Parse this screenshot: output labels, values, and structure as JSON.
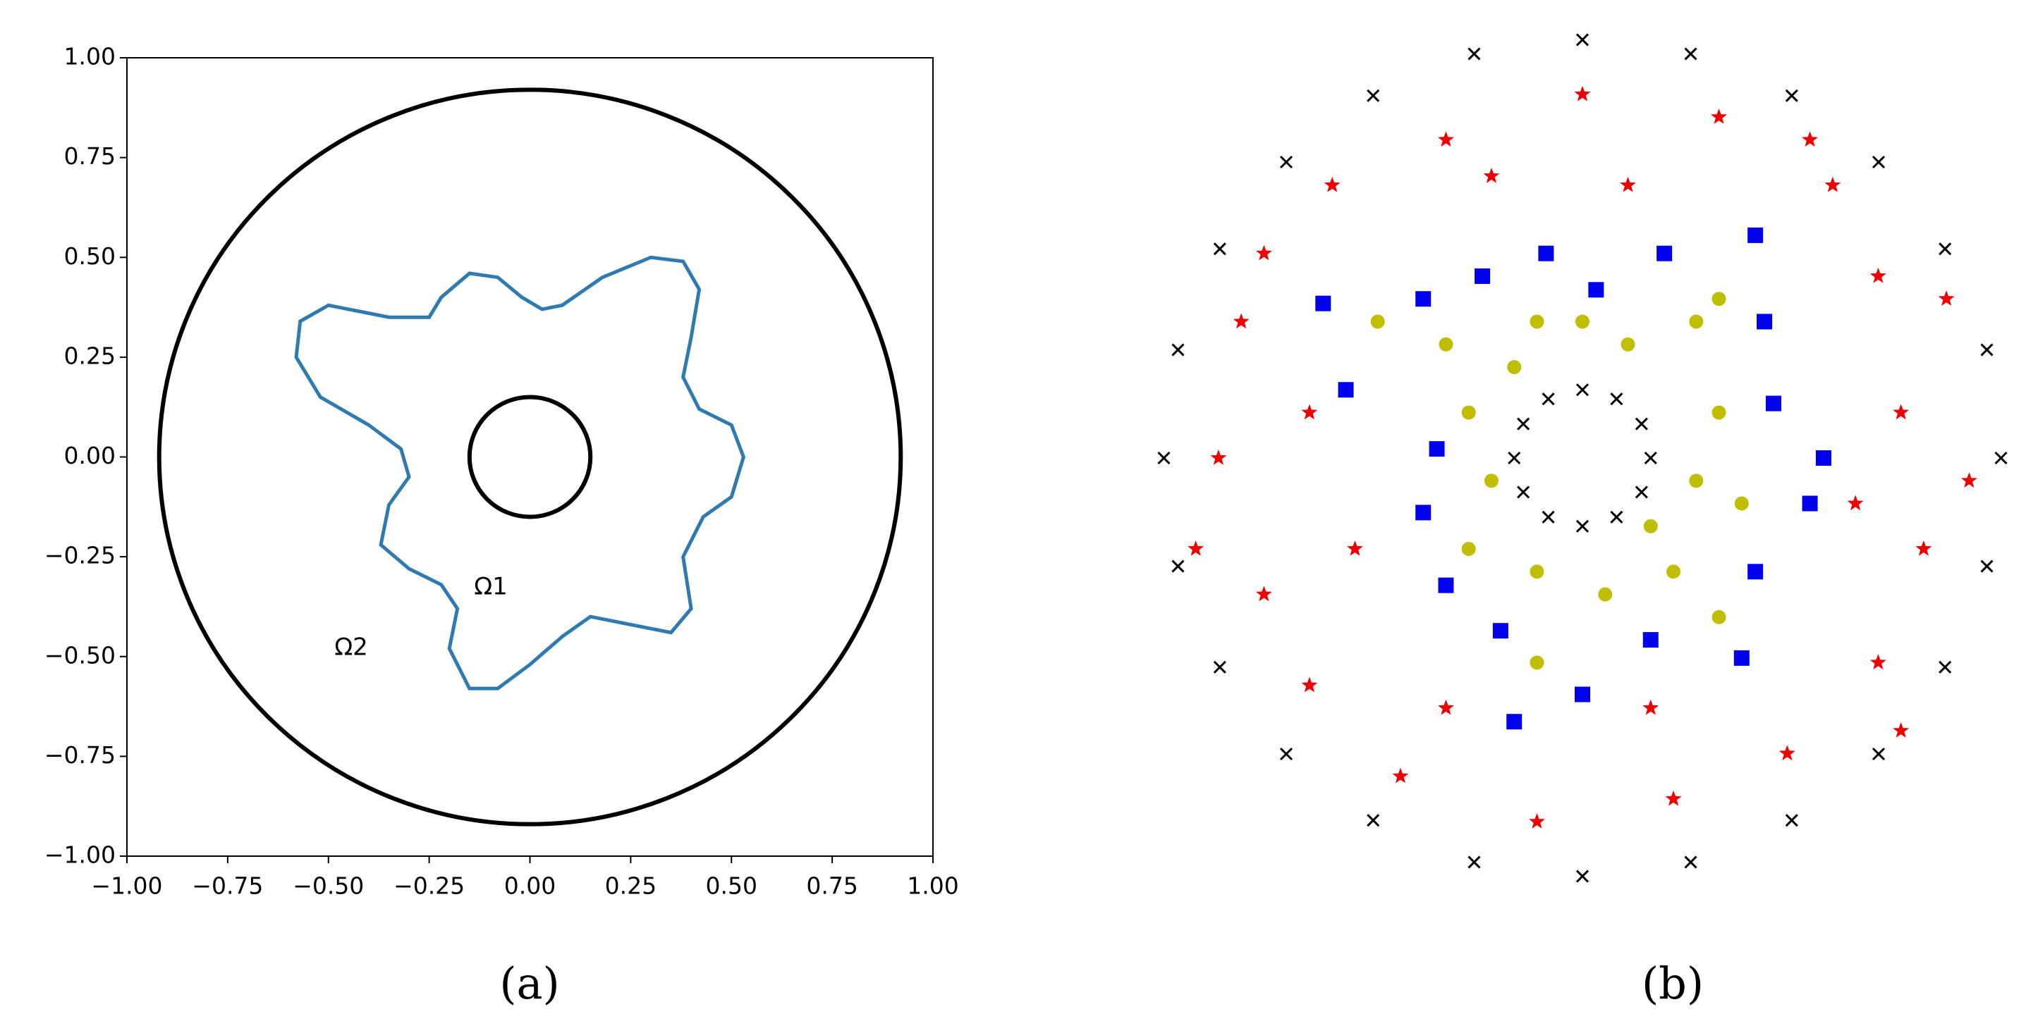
{
  "chart_data": [
    {
      "type": "line",
      "caption": "(a)",
      "annotations": [
        "Ω1",
        "Ω2"
      ],
      "xlim": [
        -1,
        1
      ],
      "ylim": [
        -1,
        1
      ],
      "xticks": [
        {
          "value": -1,
          "label": "−1.00"
        },
        {
          "value": -0.75,
          "label": "−0.75"
        },
        {
          "value": -0.5,
          "label": "−0.50"
        },
        {
          "value": -0.25,
          "label": "−0.25"
        },
        {
          "value": 0,
          "label": "0.00"
        },
        {
          "value": 0.25,
          "label": "0.25"
        },
        {
          "value": 0.5,
          "label": "0.50"
        },
        {
          "value": 0.75,
          "label": "0.75"
        },
        {
          "value": 1,
          "label": "1.00"
        }
      ],
      "yticks": [
        {
          "value": -1,
          "label": "−1.00"
        },
        {
          "value": -0.75,
          "label": "−0.75"
        },
        {
          "value": -0.5,
          "label": "−0.50"
        },
        {
          "value": -0.25,
          "label": "−0.25"
        },
        {
          "value": 0,
          "label": "0.00"
        },
        {
          "value": 0.25,
          "label": "0.25"
        },
        {
          "value": 0.5,
          "label": "0.50"
        },
        {
          "value": 0.75,
          "label": "0.75"
        },
        {
          "value": 1,
          "label": "1.00"
        }
      ],
      "circles": [
        {
          "cx": 0,
          "cy": 0,
          "r": 0.92,
          "color": "#000000"
        },
        {
          "cx": 0,
          "cy": 0,
          "r": 0.15,
          "color": "#000000"
        }
      ],
      "series": [
        {
          "color": "#2f7bb0",
          "x": [
            0.53,
            0.5,
            0.42,
            0.38,
            0.4,
            0.42,
            0.38,
            0.3,
            0.18,
            0.08,
            0.03,
            -0.02,
            -0.08,
            -0.15,
            -0.22,
            -0.25,
            -0.35,
            -0.5,
            -0.57,
            -0.58,
            -0.52,
            -0.4,
            -0.32,
            -0.3,
            -0.35,
            -0.37,
            -0.3,
            -0.22,
            -0.18,
            -0.2,
            -0.15,
            -0.08,
            0.0,
            0.08,
            0.15,
            0.25,
            0.35,
            0.4,
            0.38,
            0.43,
            0.5
          ],
          "y": [
            0.0,
            0.08,
            0.12,
            0.2,
            0.3,
            0.42,
            0.49,
            0.5,
            0.45,
            0.38,
            0.37,
            0.4,
            0.45,
            0.46,
            0.4,
            0.35,
            0.35,
            0.38,
            0.34,
            0.25,
            0.15,
            0.08,
            0.02,
            -0.05,
            -0.12,
            -0.22,
            -0.28,
            -0.32,
            -0.38,
            -0.48,
            -0.58,
            -0.58,
            -0.52,
            -0.45,
            -0.4,
            -0.42,
            -0.44,
            -0.38,
            -0.25,
            -0.15,
            -0.1
          ]
        }
      ]
    },
    {
      "type": "scatter",
      "caption": "(b)",
      "xlim": [
        -0.93,
        0.93
      ],
      "ylim": [
        -0.93,
        0.93
      ],
      "series": [
        {
          "marker": "x",
          "color": "#000000",
          "x": [
            0.92,
            0.889,
            0.797,
            0.651,
            0.46,
            0.238,
            0,
            -0.238,
            -0.46,
            -0.651,
            -0.797,
            -0.889,
            -0.92,
            -0.889,
            -0.797,
            -0.651,
            -0.46,
            -0.238,
            0,
            0.238,
            0.46,
            0.651,
            0.797,
            0.889
          ],
          "y": [
            0,
            0.238,
            0.46,
            0.651,
            0.797,
            0.889,
            0.92,
            0.889,
            0.797,
            0.651,
            0.46,
            0.238,
            0,
            -0.238,
            -0.46,
            -0.651,
            -0.797,
            -0.889,
            -0.92,
            -0.889,
            -0.797,
            -0.651,
            -0.46,
            -0.238
          ]
        },
        {
          "marker": "x",
          "color": "#000000",
          "x": [
            0.15,
            0.13,
            0.075,
            0,
            -0.075,
            -0.13,
            -0.15,
            -0.13,
            -0.075,
            0,
            0.075,
            0.13
          ],
          "y": [
            0,
            0.075,
            0.13,
            0.15,
            0.13,
            0.075,
            0,
            -0.075,
            -0.13,
            -0.15,
            -0.13,
            -0.075
          ]
        },
        {
          "marker": "square",
          "color": "#0000ee",
          "x": [
            0.53,
            0.42,
            0.4,
            0.38,
            0.18,
            0.03,
            -0.08,
            -0.22,
            -0.35,
            -0.57,
            -0.52,
            -0.32,
            -0.35,
            -0.3,
            -0.18,
            -0.15,
            0.0,
            0.15,
            0.35,
            0.38,
            0.5
          ],
          "y": [
            0.0,
            0.12,
            0.3,
            0.49,
            0.45,
            0.37,
            0.45,
            0.4,
            0.35,
            0.34,
            0.15,
            0.02,
            -0.12,
            -0.28,
            -0.38,
            -0.58,
            -0.52,
            -0.4,
            -0.44,
            -0.25,
            -0.1
          ]
        },
        {
          "marker": "circle",
          "color": "#bfbf00",
          "x": [
            0.3,
            0.25,
            0.1,
            -0.1,
            -0.3,
            -0.45,
            -0.25,
            -0.2,
            -0.25,
            -0.1,
            -0.1,
            0.05,
            0.2,
            0.3,
            0.35,
            0.25,
            0.3,
            0.0,
            -0.15,
            0.15
          ],
          "y": [
            0.1,
            0.3,
            0.25,
            0.3,
            0.25,
            0.3,
            0.1,
            -0.05,
            -0.2,
            -0.25,
            -0.45,
            -0.3,
            -0.25,
            -0.35,
            -0.1,
            -0.05,
            0.35,
            0.3,
            0.2,
            -0.15
          ]
        },
        {
          "marker": "star",
          "color": "#ee0000",
          "x": [
            0.7,
            0.75,
            0.65,
            0.55,
            0.3,
            0.0,
            -0.3,
            -0.55,
            -0.75,
            -0.8,
            -0.7,
            -0.6,
            -0.4,
            -0.1,
            0.2,
            0.45,
            0.65,
            0.8,
            0.85,
            -0.85,
            -0.5,
            -0.6,
            0.6,
            0.5,
            -0.2,
            0.1,
            -0.3,
            0.15,
            0.7,
            -0.7
          ],
          "y": [
            0.1,
            -0.2,
            0.4,
            0.6,
            0.75,
            0.8,
            0.7,
            0.6,
            0.3,
            0.0,
            -0.3,
            -0.5,
            -0.7,
            -0.8,
            -0.75,
            -0.65,
            -0.45,
            0.35,
            -0.05,
            -0.2,
            -0.2,
            0.1,
            -0.1,
            0.7,
            0.62,
            0.6,
            -0.55,
            -0.55,
            -0.6,
            0.45
          ]
        }
      ]
    }
  ]
}
